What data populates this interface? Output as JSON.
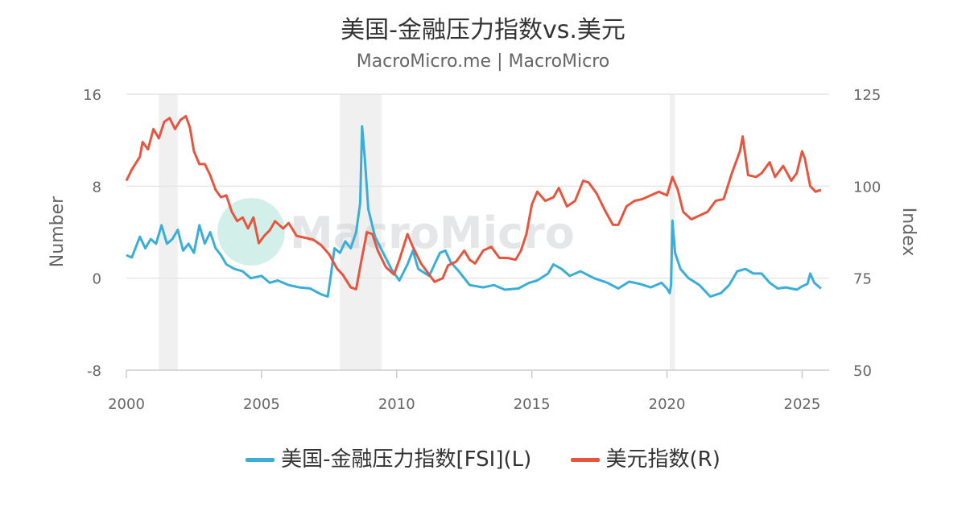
{
  "chart_data": {
    "type": "line",
    "title": "美国-金融压力指数vs.美元",
    "subtitle": "MacroMicro.me | MacroMicro",
    "watermark": "MacroMicro",
    "colors": {
      "fsi": "#3aaed8",
      "dxy": "#e8553e",
      "grid": "#e6e6e6",
      "recession": "#f0f0f0"
    },
    "x_ticks": [
      2000,
      2005,
      2010,
      2015,
      2020,
      2025
    ],
    "xlim": [
      2000,
      2026
    ],
    "left_axis": {
      "title": "Number",
      "ticks": [
        16,
        8,
        0,
        -8
      ],
      "ylim": [
        -8,
        16
      ]
    },
    "right_axis": {
      "title": "Index",
      "ticks": [
        125,
        100,
        75,
        50
      ],
      "ylim": [
        50,
        125
      ]
    },
    "recession_bands": [
      [
        2001.2,
        2001.9
      ],
      [
        2007.9,
        2009.45
      ],
      [
        2020.1,
        2020.3
      ]
    ],
    "series": [
      {
        "name": "美国-金融压力指数[FSI](L)",
        "axis": "left",
        "points": [
          [
            2000.0,
            2.0
          ],
          [
            2000.2,
            1.8
          ],
          [
            2000.5,
            3.6
          ],
          [
            2000.7,
            2.6
          ],
          [
            2000.9,
            3.4
          ],
          [
            2001.1,
            3.0
          ],
          [
            2001.3,
            4.6
          ],
          [
            2001.5,
            3.0
          ],
          [
            2001.7,
            3.4
          ],
          [
            2001.9,
            4.2
          ],
          [
            2002.1,
            2.4
          ],
          [
            2002.3,
            3.0
          ],
          [
            2002.5,
            2.2
          ],
          [
            2002.7,
            4.6
          ],
          [
            2002.9,
            3.0
          ],
          [
            2003.1,
            4.0
          ],
          [
            2003.3,
            2.6
          ],
          [
            2003.5,
            2.0
          ],
          [
            2003.7,
            1.2
          ],
          [
            2004.0,
            0.8
          ],
          [
            2004.3,
            0.6
          ],
          [
            2004.6,
            0.0
          ],
          [
            2005.0,
            0.2
          ],
          [
            2005.3,
            -0.4
          ],
          [
            2005.6,
            -0.2
          ],
          [
            2006.0,
            -0.6
          ],
          [
            2006.4,
            -0.8
          ],
          [
            2006.8,
            -0.9
          ],
          [
            2007.2,
            -1.4
          ],
          [
            2007.45,
            -1.6
          ],
          [
            2007.55,
            0.0
          ],
          [
            2007.7,
            2.6
          ],
          [
            2007.9,
            2.2
          ],
          [
            2008.1,
            3.2
          ],
          [
            2008.3,
            2.6
          ],
          [
            2008.5,
            4.0
          ],
          [
            2008.65,
            6.5
          ],
          [
            2008.72,
            13.2
          ],
          [
            2008.82,
            10.5
          ],
          [
            2008.95,
            6.0
          ],
          [
            2009.2,
            3.6
          ],
          [
            2009.5,
            2.2
          ],
          [
            2009.8,
            0.8
          ],
          [
            2010.1,
            -0.2
          ],
          [
            2010.4,
            1.2
          ],
          [
            2010.6,
            2.4
          ],
          [
            2010.8,
            0.8
          ],
          [
            2011.2,
            0.2
          ],
          [
            2011.6,
            2.2
          ],
          [
            2011.8,
            2.4
          ],
          [
            2012.0,
            1.4
          ],
          [
            2012.3,
            0.6
          ],
          [
            2012.7,
            -0.6
          ],
          [
            2013.2,
            -0.8
          ],
          [
            2013.6,
            -0.6
          ],
          [
            2014.0,
            -1.0
          ],
          [
            2014.5,
            -0.9
          ],
          [
            2014.9,
            -0.4
          ],
          [
            2015.2,
            -0.2
          ],
          [
            2015.6,
            0.4
          ],
          [
            2015.8,
            1.2
          ],
          [
            2016.1,
            0.8
          ],
          [
            2016.4,
            0.2
          ],
          [
            2016.8,
            0.6
          ],
          [
            2017.3,
            0.0
          ],
          [
            2017.8,
            -0.4
          ],
          [
            2018.2,
            -0.9
          ],
          [
            2018.6,
            -0.3
          ],
          [
            2019.0,
            -0.5
          ],
          [
            2019.4,
            -0.8
          ],
          [
            2019.8,
            -0.4
          ],
          [
            2020.0,
            -0.9
          ],
          [
            2020.1,
            -1.3
          ],
          [
            2020.15,
            -0.6
          ],
          [
            2020.2,
            5.0
          ],
          [
            2020.3,
            2.2
          ],
          [
            2020.5,
            0.8
          ],
          [
            2020.8,
            0.0
          ],
          [
            2021.2,
            -0.6
          ],
          [
            2021.6,
            -1.6
          ],
          [
            2022.0,
            -1.3
          ],
          [
            2022.3,
            -0.6
          ],
          [
            2022.6,
            0.6
          ],
          [
            2022.9,
            0.8
          ],
          [
            2023.2,
            0.4
          ],
          [
            2023.5,
            0.4
          ],
          [
            2023.8,
            -0.4
          ],
          [
            2024.1,
            -0.9
          ],
          [
            2024.4,
            -0.8
          ],
          [
            2024.8,
            -1.0
          ],
          [
            2025.0,
            -0.7
          ],
          [
            2025.2,
            -0.5
          ],
          [
            2025.3,
            0.4
          ],
          [
            2025.45,
            -0.4
          ],
          [
            2025.7,
            -0.9
          ]
        ]
      },
      {
        "name": "美元指数(R)",
        "axis": "right",
        "points": [
          [
            2000.0,
            101.5
          ],
          [
            2000.2,
            104.5
          ],
          [
            2000.5,
            108.0
          ],
          [
            2000.6,
            112.0
          ],
          [
            2000.8,
            110.0
          ],
          [
            2001.0,
            115.5
          ],
          [
            2001.2,
            113.0
          ],
          [
            2001.4,
            117.5
          ],
          [
            2001.6,
            118.5
          ],
          [
            2001.8,
            115.5
          ],
          [
            2002.0,
            118.0
          ],
          [
            2002.2,
            119.0
          ],
          [
            2002.35,
            116.0
          ],
          [
            2002.5,
            109.5
          ],
          [
            2002.7,
            106.0
          ],
          [
            2002.9,
            106.0
          ],
          [
            2003.1,
            103.0
          ],
          [
            2003.3,
            99.0
          ],
          [
            2003.5,
            97.0
          ],
          [
            2003.7,
            97.5
          ],
          [
            2003.9,
            93.0
          ],
          [
            2004.1,
            90.5
          ],
          [
            2004.3,
            91.5
          ],
          [
            2004.5,
            88.5
          ],
          [
            2004.7,
            91.5
          ],
          [
            2004.9,
            84.5
          ],
          [
            2005.1,
            86.5
          ],
          [
            2005.3,
            88.0
          ],
          [
            2005.5,
            90.5
          ],
          [
            2005.8,
            88.5
          ],
          [
            2006.0,
            90.0
          ],
          [
            2006.3,
            86.5
          ],
          [
            2006.6,
            86.0
          ],
          [
            2006.9,
            85.5
          ],
          [
            2007.2,
            84.0
          ],
          [
            2007.5,
            81.5
          ],
          [
            2007.8,
            77.5
          ],
          [
            2008.0,
            76.0
          ],
          [
            2008.3,
            72.5
          ],
          [
            2008.5,
            72.0
          ],
          [
            2008.7,
            80.0
          ],
          [
            2008.9,
            87.5
          ],
          [
            2009.1,
            87.0
          ],
          [
            2009.3,
            82.5
          ],
          [
            2009.6,
            78.0
          ],
          [
            2009.9,
            76.0
          ],
          [
            2010.1,
            80.0
          ],
          [
            2010.4,
            87.0
          ],
          [
            2010.6,
            83.5
          ],
          [
            2010.9,
            79.0
          ],
          [
            2011.1,
            77.0
          ],
          [
            2011.4,
            74.0
          ],
          [
            2011.7,
            75.0
          ],
          [
            2011.9,
            78.5
          ],
          [
            2012.2,
            79.5
          ],
          [
            2012.5,
            82.5
          ],
          [
            2012.7,
            80.0
          ],
          [
            2012.9,
            79.0
          ],
          [
            2013.2,
            82.5
          ],
          [
            2013.5,
            83.5
          ],
          [
            2013.8,
            80.5
          ],
          [
            2014.1,
            80.5
          ],
          [
            2014.4,
            80.0
          ],
          [
            2014.6,
            82.5
          ],
          [
            2014.8,
            87.0
          ],
          [
            2015.0,
            95.0
          ],
          [
            2015.2,
            98.5
          ],
          [
            2015.5,
            96.0
          ],
          [
            2015.8,
            97.0
          ],
          [
            2016.0,
            99.5
          ],
          [
            2016.3,
            94.5
          ],
          [
            2016.6,
            96.0
          ],
          [
            2016.9,
            101.5
          ],
          [
            2017.1,
            101.0
          ],
          [
            2017.4,
            98.0
          ],
          [
            2017.7,
            93.5
          ],
          [
            2018.0,
            89.5
          ],
          [
            2018.2,
            89.5
          ],
          [
            2018.5,
            94.5
          ],
          [
            2018.8,
            96.0
          ],
          [
            2019.1,
            96.5
          ],
          [
            2019.4,
            97.5
          ],
          [
            2019.7,
            98.5
          ],
          [
            2020.0,
            97.5
          ],
          [
            2020.2,
            102.5
          ],
          [
            2020.4,
            99.0
          ],
          [
            2020.6,
            93.0
          ],
          [
            2020.9,
            91.0
          ],
          [
            2021.2,
            92.0
          ],
          [
            2021.5,
            93.0
          ],
          [
            2021.8,
            96.0
          ],
          [
            2022.1,
            96.5
          ],
          [
            2022.4,
            103.5
          ],
          [
            2022.7,
            109.5
          ],
          [
            2022.8,
            113.5
          ],
          [
            2023.0,
            103.0
          ],
          [
            2023.3,
            102.5
          ],
          [
            2023.5,
            103.5
          ],
          [
            2023.8,
            106.5
          ],
          [
            2024.0,
            102.5
          ],
          [
            2024.3,
            105.5
          ],
          [
            2024.6,
            101.5
          ],
          [
            2024.8,
            103.5
          ],
          [
            2025.0,
            109.5
          ],
          [
            2025.1,
            107.5
          ],
          [
            2025.3,
            100.0
          ],
          [
            2025.5,
            98.5
          ],
          [
            2025.7,
            99.0
          ]
        ]
      }
    ]
  }
}
